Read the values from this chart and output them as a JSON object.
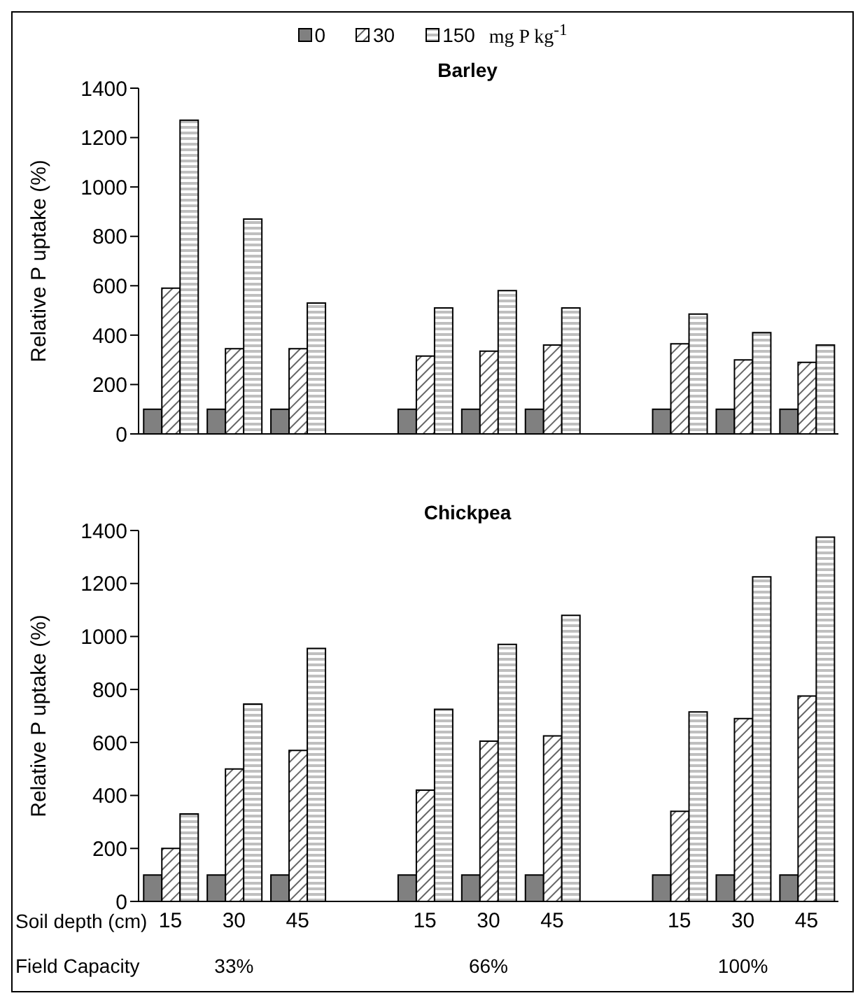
{
  "chart_data": [
    {
      "type": "bar",
      "title": "Barley",
      "ylabel": "Relative P uptake (%)",
      "legend": "top",
      "legend_title": "mg P kg$^{-1}$",
      "tick_labels": "y",
      "grid": false,
      "categories": [
        "15",
        "30",
        "45",
        null,
        "15",
        "30",
        "45",
        null,
        "15",
        "30",
        "45"
      ],
      "ylim": [
        0,
        1400
      ],
      "yticks": [
        0,
        200,
        400,
        600,
        800,
        1000,
        1200,
        1400
      ],
      "series": [
        {
          "name": "0",
          "color": "#808080",
          "values": [
            100,
            100,
            100,
            null,
            100,
            100,
            100,
            null,
            100,
            100,
            100
          ]
        },
        {
          "name": "30",
          "color": "#000000",
          "values": [
            590,
            345,
            345,
            null,
            315,
            335,
            360,
            null,
            365,
            300,
            290
          ]
        },
        {
          "name": "150",
          "color": "#000000",
          "values": [
            1270,
            870,
            530,
            null,
            510,
            580,
            510,
            null,
            485,
            410,
            360
          ]
        }
      ]
    },
    {
      "type": "bar",
      "title": "Chickpea",
      "ylabel": "Relative P uptake (%)",
      "xlabel": "Soil depth (cm)",
      "grid": false,
      "annotations": [
        "Field Capacity",
        "33%",
        "66%",
        "100%"
      ],
      "categories": [
        "15",
        "30",
        "45",
        null,
        "15",
        "30",
        "45",
        null,
        "15",
        "30",
        "45"
      ],
      "ylim": [
        0,
        1400
      ],
      "yticks": [
        0,
        200,
        400,
        600,
        800,
        1000,
        1200,
        1400
      ],
      "series": [
        {
          "color": "#808080",
          "values": [
            100,
            100,
            100,
            null,
            100,
            100,
            100,
            null,
            100,
            100,
            100
          ]
        },
        {
          "color": "#000000",
          "values": [
            200,
            500,
            570,
            null,
            420,
            605,
            625,
            null,
            340,
            690,
            775
          ]
        },
        {
          "color": "#000000",
          "values": [
            330,
            745,
            955,
            null,
            725,
            970,
            1080,
            null,
            715,
            1225,
            1375
          ]
        }
      ]
    }
  ]
}
